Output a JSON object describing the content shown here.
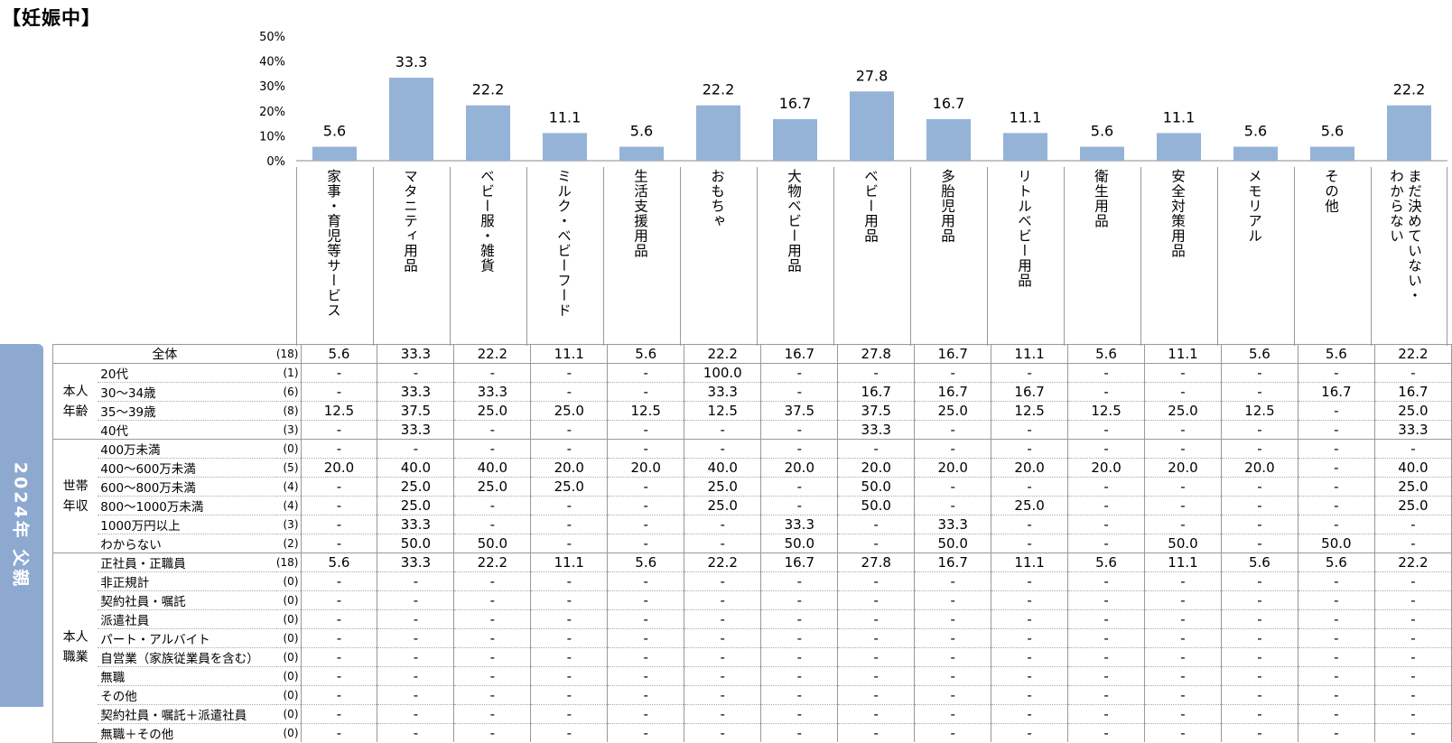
{
  "title": "【妊娠中】",
  "side_label": "2024年 父親",
  "chart_data": {
    "type": "bar",
    "categories": [
      "家事・育児等サービス",
      "マタニティ用品",
      "ベビー服・雑貨",
      "ミルク・ベビーフード",
      "生活支援用品",
      "おもちゃ",
      "大物ベビー用品",
      "ベビー用品",
      "多胎児用品",
      "リトルベビー用品",
      "衛生用品",
      "安全対策用品",
      "メモリアル",
      "その他",
      "まだ決めていない・わからない"
    ],
    "values": [
      5.6,
      33.3,
      22.2,
      11.1,
      5.6,
      22.2,
      16.7,
      27.8,
      16.7,
      11.1,
      5.6,
      11.1,
      5.6,
      5.6,
      22.2
    ],
    "value_labels": [
      "5.6",
      "33.3",
      "22.2",
      "11.1",
      "5.6",
      "22.2",
      "16.7",
      "27.8",
      "16.7",
      "11.1",
      "5.6",
      "11.1",
      "5.6",
      "5.6",
      "22.2"
    ],
    "ylim": [
      0,
      50
    ],
    "yticks": [
      "0%",
      "10%",
      "20%",
      "30%",
      "40%",
      "50%"
    ],
    "bar_color": "#95b3d7"
  },
  "categories_display": [
    [
      "家事・育児等サービス"
    ],
    [
      "マタニティ用品"
    ],
    [
      "ベビー服・雑貨"
    ],
    [
      "ミルク・ベビーフード"
    ],
    [
      "生活支援用品"
    ],
    [
      "おもちゃ"
    ],
    [
      "大物ベビー用品"
    ],
    [
      "ベビー用品"
    ],
    [
      "多胎児用品"
    ],
    [
      "リトルベビー用品"
    ],
    [
      "衛生用品"
    ],
    [
      "安全対策用品"
    ],
    [
      "メモリアル"
    ],
    [
      "その他"
    ],
    [
      "まだ決めていない・",
      "わからない"
    ]
  ],
  "table": {
    "total": {
      "label": "全体",
      "n": "(18)",
      "values": [
        "5.6",
        "33.3",
        "22.2",
        "11.1",
        "5.6",
        "22.2",
        "16.7",
        "27.8",
        "16.7",
        "11.1",
        "5.6",
        "11.1",
        "5.6",
        "5.6",
        "22.2"
      ]
    },
    "groups": [
      {
        "name": "本人年齢",
        "rows": [
          {
            "label": "20代",
            "n": "(1)",
            "values": [
              "-",
              "-",
              "-",
              "-",
              "-",
              "100.0",
              "-",
              "-",
              "-",
              "-",
              "-",
              "-",
              "-",
              "-",
              "-"
            ]
          },
          {
            "label": "30～34歳",
            "n": "(6)",
            "values": [
              "-",
              "33.3",
              "33.3",
              "-",
              "-",
              "33.3",
              "-",
              "16.7",
              "16.7",
              "16.7",
              "-",
              "-",
              "-",
              "16.7",
              "16.7"
            ]
          },
          {
            "label": "35～39歳",
            "n": "(8)",
            "values": [
              "12.5",
              "37.5",
              "25.0",
              "25.0",
              "12.5",
              "12.5",
              "37.5",
              "37.5",
              "25.0",
              "12.5",
              "12.5",
              "25.0",
              "12.5",
              "-",
              "25.0"
            ]
          },
          {
            "label": "40代",
            "n": "(3)",
            "values": [
              "-",
              "33.3",
              "-",
              "-",
              "-",
              "-",
              "-",
              "33.3",
              "-",
              "-",
              "-",
              "-",
              "-",
              "-",
              "33.3"
            ]
          }
        ]
      },
      {
        "name": "世帯年収",
        "rows": [
          {
            "label": "400万未満",
            "n": "(0)",
            "values": [
              "-",
              "-",
              "-",
              "-",
              "-",
              "-",
              "-",
              "-",
              "-",
              "-",
              "-",
              "-",
              "-",
              "-",
              "-"
            ]
          },
          {
            "label": "400～600万未満",
            "n": "(5)",
            "values": [
              "20.0",
              "40.0",
              "40.0",
              "20.0",
              "20.0",
              "40.0",
              "20.0",
              "20.0",
              "20.0",
              "20.0",
              "20.0",
              "20.0",
              "20.0",
              "-",
              "40.0"
            ]
          },
          {
            "label": "600～800万未満",
            "n": "(4)",
            "values": [
              "-",
              "25.0",
              "25.0",
              "25.0",
              "-",
              "25.0",
              "-",
              "50.0",
              "-",
              "-",
              "-",
              "-",
              "-",
              "-",
              "25.0"
            ]
          },
          {
            "label": "800～1000万未満",
            "n": "(4)",
            "values": [
              "-",
              "25.0",
              "-",
              "-",
              "-",
              "25.0",
              "-",
              "50.0",
              "-",
              "25.0",
              "-",
              "-",
              "-",
              "-",
              "25.0"
            ]
          },
          {
            "label": "1000万円以上",
            "n": "(3)",
            "values": [
              "-",
              "33.3",
              "-",
              "-",
              "-",
              "-",
              "33.3",
              "-",
              "33.3",
              "-",
              "-",
              "-",
              "-",
              "-",
              "-"
            ]
          },
          {
            "label": "わからない",
            "n": "(2)",
            "values": [
              "-",
              "50.0",
              "50.0",
              "-",
              "-",
              "-",
              "50.0",
              "-",
              "50.0",
              "-",
              "-",
              "50.0",
              "-",
              "50.0",
              "-"
            ]
          }
        ]
      },
      {
        "name": "本人職業",
        "rows": [
          {
            "label": "正社員・正職員",
            "n": "(18)",
            "values": [
              "5.6",
              "33.3",
              "22.2",
              "11.1",
              "5.6",
              "22.2",
              "16.7",
              "27.8",
              "16.7",
              "11.1",
              "5.6",
              "11.1",
              "5.6",
              "5.6",
              "22.2"
            ]
          },
          {
            "label": "非正規計",
            "n": "(0)",
            "values": [
              "-",
              "-",
              "-",
              "-",
              "-",
              "-",
              "-",
              "-",
              "-",
              "-",
              "-",
              "-",
              "-",
              "-",
              "-"
            ]
          },
          {
            "label": "契約社員・嘱託",
            "n": "(0)",
            "values": [
              "-",
              "-",
              "-",
              "-",
              "-",
              "-",
              "-",
              "-",
              "-",
              "-",
              "-",
              "-",
              "-",
              "-",
              "-"
            ]
          },
          {
            "label": "派遣社員",
            "n": "(0)",
            "values": [
              "-",
              "-",
              "-",
              "-",
              "-",
              "-",
              "-",
              "-",
              "-",
              "-",
              "-",
              "-",
              "-",
              "-",
              "-"
            ]
          },
          {
            "label": "パート・アルバイト",
            "n": "(0)",
            "values": [
              "-",
              "-",
              "-",
              "-",
              "-",
              "-",
              "-",
              "-",
              "-",
              "-",
              "-",
              "-",
              "-",
              "-",
              "-"
            ]
          },
          {
            "label": "自営業（家族従業員を含む）",
            "n": "(0)",
            "values": [
              "-",
              "-",
              "-",
              "-",
              "-",
              "-",
              "-",
              "-",
              "-",
              "-",
              "-",
              "-",
              "-",
              "-",
              "-"
            ]
          },
          {
            "label": "無職",
            "n": "(0)",
            "values": [
              "-",
              "-",
              "-",
              "-",
              "-",
              "-",
              "-",
              "-",
              "-",
              "-",
              "-",
              "-",
              "-",
              "-",
              "-"
            ]
          },
          {
            "label": "その他",
            "n": "(0)",
            "values": [
              "-",
              "-",
              "-",
              "-",
              "-",
              "-",
              "-",
              "-",
              "-",
              "-",
              "-",
              "-",
              "-",
              "-",
              "-"
            ]
          },
          {
            "label": "契約社員・嘱託＋派遣社員",
            "n": "(0)",
            "values": [
              "-",
              "-",
              "-",
              "-",
              "-",
              "-",
              "-",
              "-",
              "-",
              "-",
              "-",
              "-",
              "-",
              "-",
              "-"
            ]
          },
          {
            "label": "無職＋その他",
            "n": "(0)",
            "values": [
              "-",
              "-",
              "-",
              "-",
              "-",
              "-",
              "-",
              "-",
              "-",
              "-",
              "-",
              "-",
              "-",
              "-",
              "-"
            ]
          }
        ]
      }
    ]
  }
}
